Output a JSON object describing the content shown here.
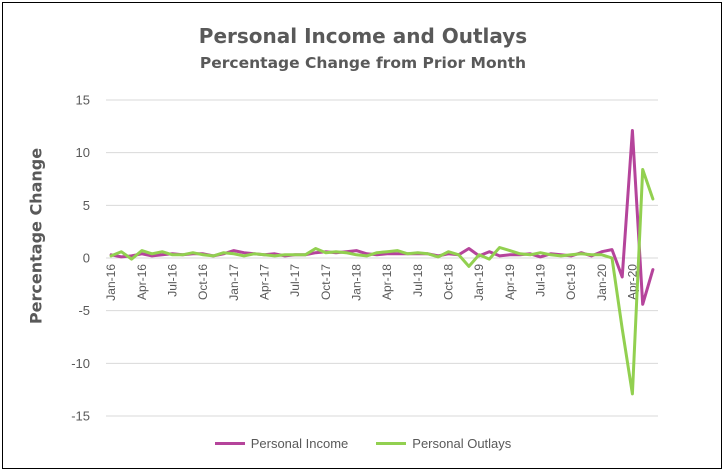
{
  "chart_data": {
    "type": "line",
    "title": "Personal Income and Outlays",
    "subtitle": "Percentage Change from Prior Month",
    "xlabel": "",
    "ylabel": "Percentage Change",
    "ylim": [
      -15,
      15
    ],
    "yticks": [
      15,
      10,
      5,
      0,
      -5,
      -10,
      -15
    ],
    "grid": "horizontal",
    "legend_position": "bottom",
    "categories": [
      "Jan-16",
      "Feb-16",
      "Mar-16",
      "Apr-16",
      "May-16",
      "Jun-16",
      "Jul-16",
      "Aug-16",
      "Sep-16",
      "Oct-16",
      "Nov-16",
      "Dec-16",
      "Jan-17",
      "Feb-17",
      "Mar-17",
      "Apr-17",
      "May-17",
      "Jun-17",
      "Jul-17",
      "Aug-17",
      "Sep-17",
      "Oct-17",
      "Nov-17",
      "Dec-17",
      "Jan-18",
      "Feb-18",
      "Mar-18",
      "Apr-18",
      "May-18",
      "Jun-18",
      "Jul-18",
      "Aug-18",
      "Sep-18",
      "Oct-18",
      "Nov-18",
      "Dec-18",
      "Jan-19",
      "Feb-19",
      "Mar-19",
      "Apr-19",
      "May-19",
      "Jun-19",
      "Jul-19",
      "Aug-19",
      "Sep-19",
      "Oct-19",
      "Nov-19",
      "Dec-19",
      "Jan-20",
      "Feb-20",
      "Mar-20",
      "Apr-20",
      "May-20",
      "Jun-20"
    ],
    "tick_labels": [
      "Jan-16",
      "Apr-16",
      "Jul-16",
      "Oct-16",
      "Jan-17",
      "Apr-17",
      "Jul-17",
      "Oct-17",
      "Jan-18",
      "Apr-18",
      "Jul-18",
      "Oct-18",
      "Jan-19",
      "Apr-19",
      "Jul-19",
      "Oct-19",
      "Jan-20",
      "Apr-20"
    ],
    "series": [
      {
        "name": "Personal Income",
        "color": "#B5449B",
        "values": [
          0.3,
          0.1,
          0.2,
          0.4,
          0.2,
          0.3,
          0.4,
          0.3,
          0.4,
          0.4,
          0.2,
          0.4,
          0.7,
          0.5,
          0.4,
          0.3,
          0.4,
          0.2,
          0.3,
          0.3,
          0.5,
          0.6,
          0.5,
          0.6,
          0.7,
          0.4,
          0.3,
          0.4,
          0.4,
          0.4,
          0.4,
          0.4,
          0.2,
          0.4,
          0.3,
          0.9,
          0.2,
          0.6,
          0.2,
          0.3,
          0.3,
          0.4,
          0.1,
          0.4,
          0.3,
          0.2,
          0.5,
          0.2,
          0.6,
          0.8,
          -1.8,
          12.1,
          -4.4,
          -1.1
        ]
      },
      {
        "name": "Personal Outlays",
        "color": "#92D050",
        "values": [
          0.2,
          0.6,
          -0.1,
          0.7,
          0.4,
          0.6,
          0.3,
          0.3,
          0.5,
          0.3,
          0.2,
          0.5,
          0.4,
          0.2,
          0.4,
          0.3,
          0.2,
          0.3,
          0.3,
          0.3,
          0.9,
          0.5,
          0.6,
          0.5,
          0.3,
          0.2,
          0.5,
          0.6,
          0.7,
          0.4,
          0.5,
          0.4,
          0.1,
          0.6,
          0.3,
          -0.8,
          0.3,
          -0.1,
          1.0,
          0.7,
          0.4,
          0.3,
          0.5,
          0.3,
          0.2,
          0.3,
          0.4,
          0.3,
          0.3,
          0.0,
          -6.7,
          -12.9,
          8.4,
          5.6
        ]
      }
    ]
  }
}
